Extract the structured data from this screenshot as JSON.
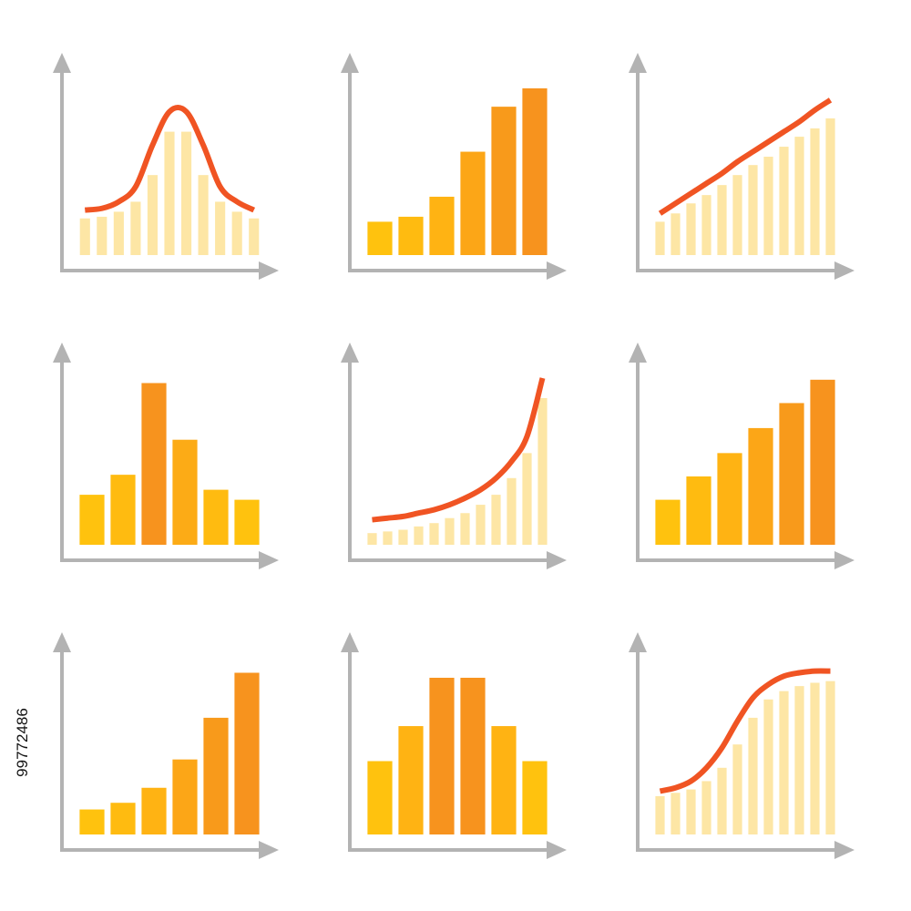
{
  "image_id": "99772486",
  "chart_data": [
    {
      "type": "bar_line",
      "ylim": [
        0,
        100
      ],
      "bar_color": "#fde6a5",
      "line_color": "#f05423",
      "values": [
        22,
        23,
        26,
        32,
        48,
        74,
        74,
        48,
        32,
        26,
        22
      ],
      "line": [
        27,
        28,
        32,
        41,
        66,
        86,
        86,
        66,
        41,
        32,
        27
      ]
    },
    {
      "type": "bar",
      "ylim": [
        0,
        100
      ],
      "values": [
        20,
        23,
        35,
        62,
        89,
        100
      ],
      "colors": [
        "#ffc20e",
        "#ffbb10",
        "#ffb313",
        "#fca617",
        "#f89a1b",
        "#f7931e"
      ]
    },
    {
      "type": "bar_line",
      "ylim": [
        0,
        100
      ],
      "bar_color": "#fde6a5",
      "line_color": "#f05423",
      "values": [
        20,
        25,
        31,
        36,
        42,
        48,
        54,
        59,
        65,
        71,
        76,
        82
      ],
      "line": [
        25,
        31,
        37,
        43,
        49,
        56,
        62,
        68,
        74,
        80,
        87,
        93
      ]
    },
    {
      "type": "bar",
      "ylim": [
        0,
        100
      ],
      "values": [
        30,
        42,
        97,
        63,
        33,
        27
      ],
      "colors": [
        "#ffc20e",
        "#ffbb10",
        "#f7931e",
        "#fcab16",
        "#ffbb10",
        "#ffc20e"
      ]
    },
    {
      "type": "bar_line",
      "ylim": [
        0,
        100
      ],
      "bar_color": "#fde6a5",
      "line_color": "#f05423",
      "values": [
        7,
        8,
        9,
        11,
        13,
        16,
        19,
        24,
        30,
        40,
        55,
        88
      ],
      "line": [
        15,
        16,
        17,
        19,
        21,
        24,
        28,
        33,
        40,
        50,
        65,
        100
      ]
    },
    {
      "type": "bar",
      "ylim": [
        0,
        100
      ],
      "values": [
        27,
        41,
        55,
        70,
        85,
        99
      ],
      "colors": [
        "#ffc20e",
        "#ffbb10",
        "#ffb313",
        "#fca617",
        "#f89a1b",
        "#f7931e"
      ]
    },
    {
      "type": "bar",
      "ylim": [
        0,
        100
      ],
      "values": [
        15,
        19,
        28,
        45,
        70,
        97
      ],
      "colors": [
        "#ffc20e",
        "#ffbb10",
        "#ffb313",
        "#fca617",
        "#f89a1b",
        "#f7931e"
      ]
    },
    {
      "type": "bar",
      "ylim": [
        0,
        100
      ],
      "values": [
        44,
        65,
        94,
        94,
        65,
        44
      ],
      "colors": [
        "#ffc20e",
        "#ffb313",
        "#f7931e",
        "#f7931e",
        "#ffb313",
        "#ffc20e"
      ]
    },
    {
      "type": "bar_line",
      "ylim": [
        0,
        100
      ],
      "bar_color": "#fde6a5",
      "line_color": "#f05423",
      "values": [
        23,
        25,
        27,
        32,
        40,
        54,
        70,
        81,
        86,
        89,
        91,
        92
      ],
      "line": [
        26,
        28,
        32,
        40,
        52,
        68,
        82,
        90,
        95,
        97,
        98,
        98
      ]
    }
  ]
}
